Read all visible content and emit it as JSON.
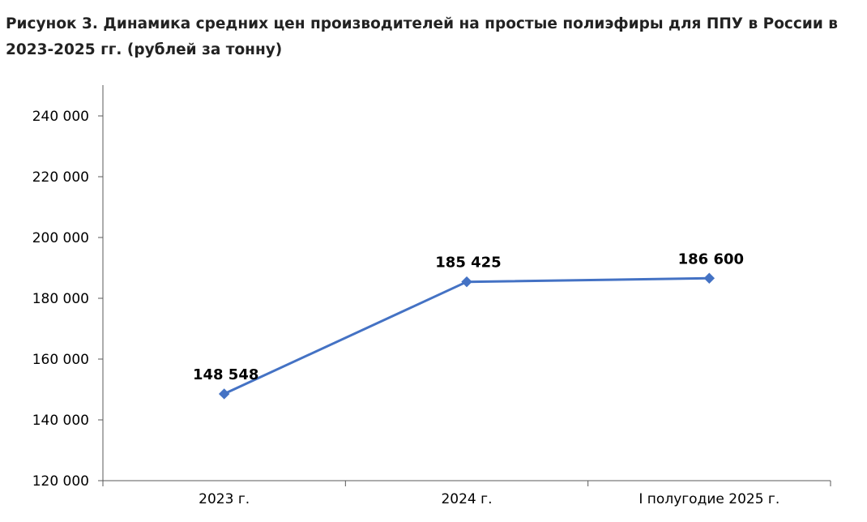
{
  "figure": {
    "title": "Рисунок 3. Динамика средних цен производителей на простые полиэфиры для ППУ в России в 2023-2025 гг. (рублей за тонну)"
  },
  "chart_data": {
    "type": "line",
    "title": "Рисунок 3. Динамика средних цен производителей на простые полиэфиры для ППУ в России в 2023-2025 гг. (рублей за тонну)",
    "xlabel": "",
    "ylabel": "",
    "categories": [
      "2023 г.",
      "2024 г.",
      "I полугодие 2025 г."
    ],
    "series": [
      {
        "values": [
          148548,
          185425,
          186600
        ],
        "labels": [
          "148 548",
          "185 425",
          "186 600"
        ],
        "color": "#4472C4",
        "marker": "diamond"
      }
    ],
    "ylim": [
      120000,
      240000
    ],
    "yticks": [
      120000,
      140000,
      160000,
      180000,
      200000,
      220000,
      240000
    ],
    "ytick_labels": [
      "120 000",
      "140 000",
      "160 000",
      "180 000",
      "200 000",
      "220 000",
      "240 000"
    ],
    "grid": false,
    "legend": "none",
    "axis_color": "#595959",
    "text_color": "#000000"
  }
}
